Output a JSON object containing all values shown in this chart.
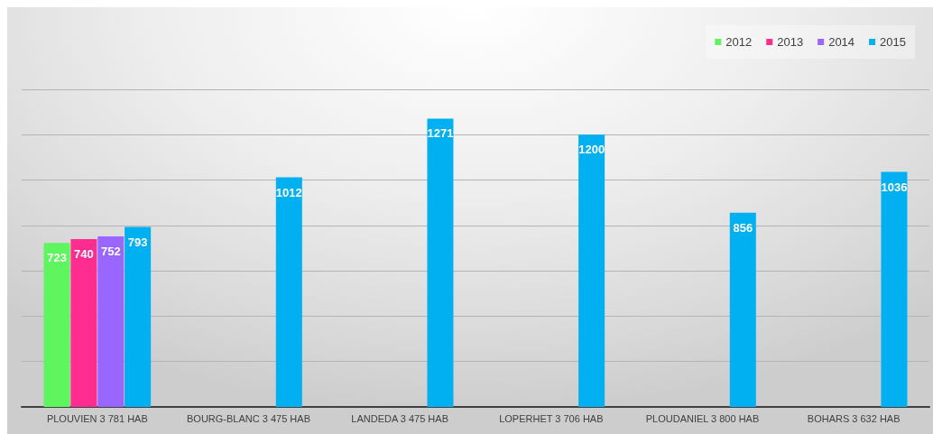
{
  "chart_data": {
    "type": "bar",
    "categories": [
      "PLOUVIEN 3 781 HAB",
      "BOURG-BLANC 3 475 HAB",
      "LANDEDA 3 475 HAB",
      "LOPERHET 3 706 HAB",
      "PLOUDANIEL 3 800 HAB",
      "BOHARS 3 632 HAB"
    ],
    "series": [
      {
        "name": "2012",
        "color": "#5ef55e",
        "values": [
          723,
          null,
          null,
          null,
          null,
          null
        ]
      },
      {
        "name": "2013",
        "color": "#ff2d8f",
        "values": [
          740,
          null,
          null,
          null,
          null,
          null
        ]
      },
      {
        "name": "2014",
        "color": "#9966ff",
        "values": [
          752,
          null,
          null,
          null,
          null,
          null
        ]
      },
      {
        "name": "2015",
        "color": "#00b0f0",
        "values": [
          793,
          1012,
          1271,
          1200,
          856,
          1036
        ]
      }
    ],
    "ylim": [
      0,
      1400
    ],
    "yticks": [
      {
        "value": 0,
        "label": null
      },
      {
        "value": 200,
        "label": null
      },
      {
        "value": 400,
        "label": null
      },
      {
        "value": 600,
        "label": null
      },
      {
        "value": 800,
        "label": null
      },
      {
        "value": 1000,
        "label": null
      },
      {
        "value": 1200,
        "label": null
      },
      {
        "value": 1400,
        "label": null
      }
    ],
    "tick_labels": "x",
    "grid": "y",
    "legend": "top right",
    "data_labels": true
  }
}
